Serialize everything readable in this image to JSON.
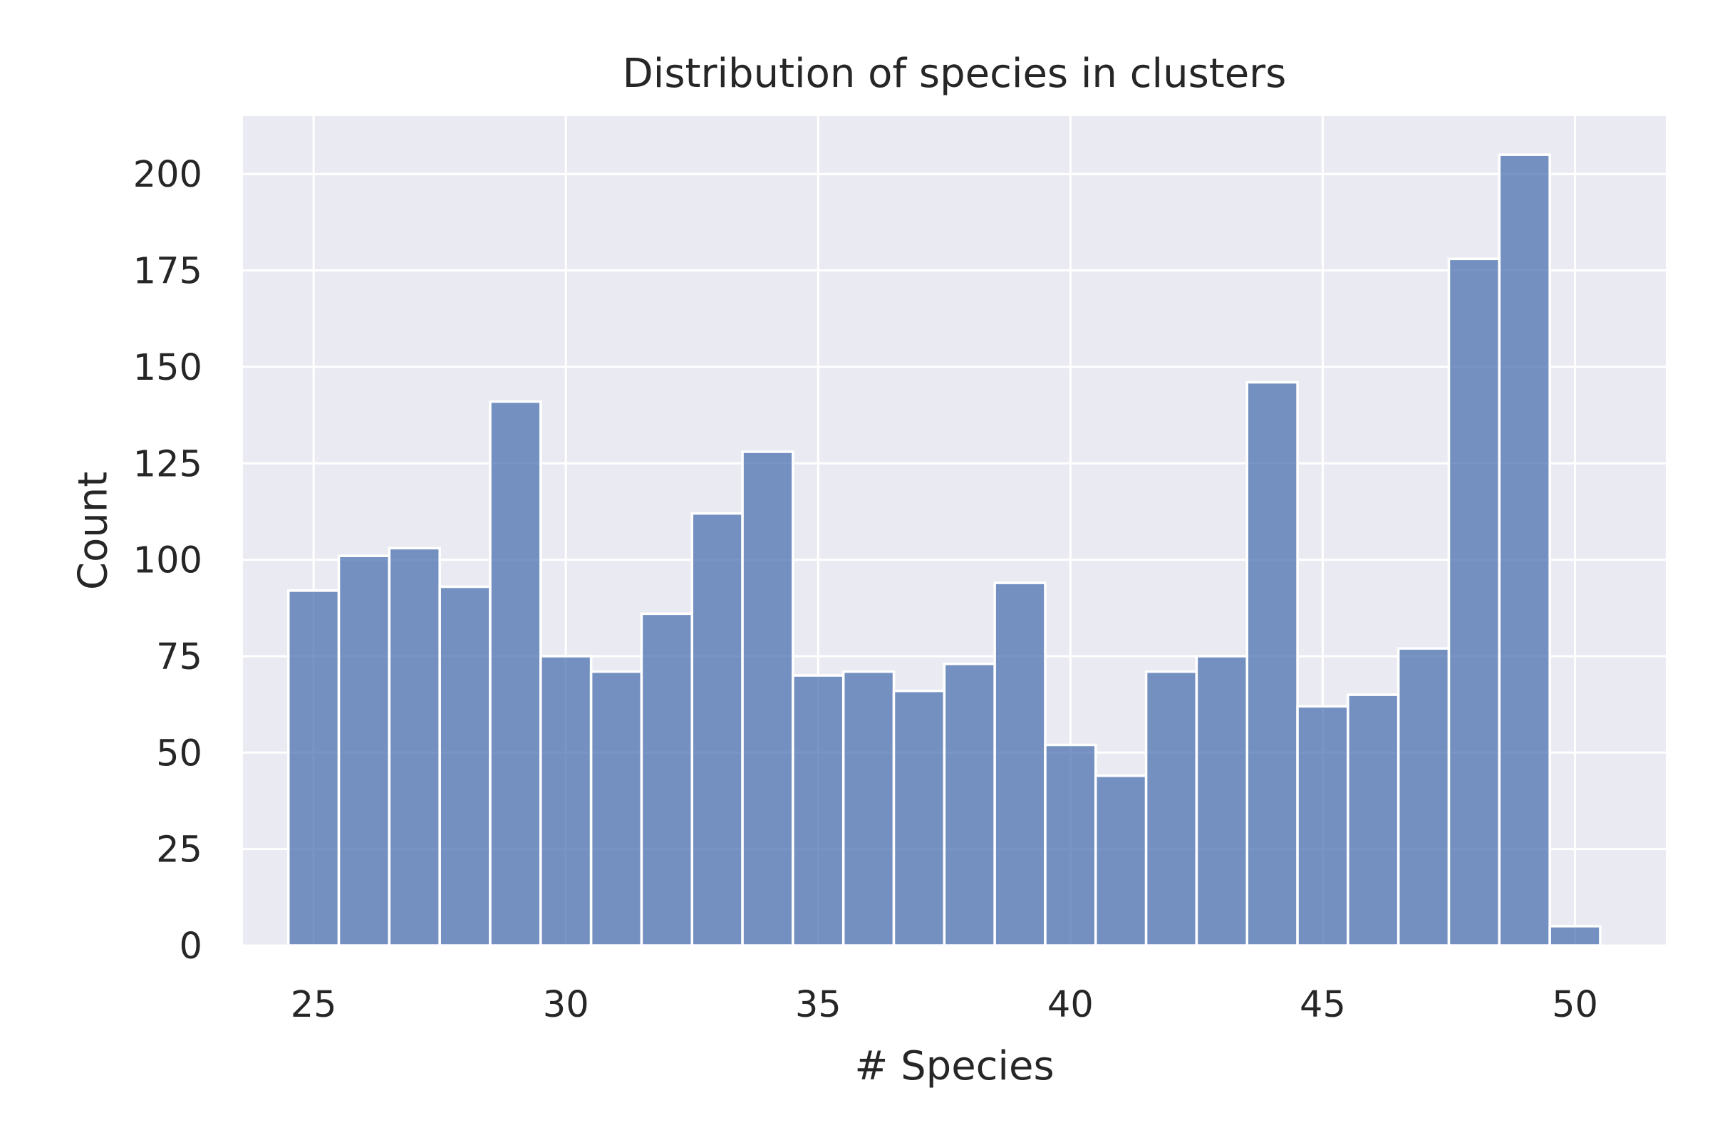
{
  "chart_data": {
    "type": "bar",
    "title": "Distribution of species in clusters",
    "xlabel": "# Species",
    "ylabel": "Count",
    "xlim": [
      23.6,
      51.8
    ],
    "ylim": [
      0,
      215
    ],
    "bin_width": 1,
    "x": [
      25,
      26,
      27,
      28,
      29,
      30,
      31,
      32,
      33,
      34,
      35,
      36,
      37,
      38,
      39,
      40,
      41,
      42,
      43,
      44,
      45,
      46,
      47,
      48,
      49,
      50
    ],
    "values": [
      92,
      101,
      103,
      93,
      141,
      75,
      71,
      86,
      112,
      128,
      70,
      71,
      66,
      73,
      94,
      52,
      44,
      71,
      75,
      146,
      62,
      65,
      77,
      178,
      205,
      5
    ],
    "x_ticks": [
      25,
      30,
      35,
      40,
      45,
      50
    ],
    "y_ticks": [
      0,
      25,
      50,
      75,
      100,
      125,
      150,
      175,
      200
    ],
    "grid": true,
    "legend": "none",
    "colors": {
      "bar": "#4c72b0",
      "background": "#eaeaf2",
      "grid": "#ffffff",
      "text": "#262626"
    }
  }
}
